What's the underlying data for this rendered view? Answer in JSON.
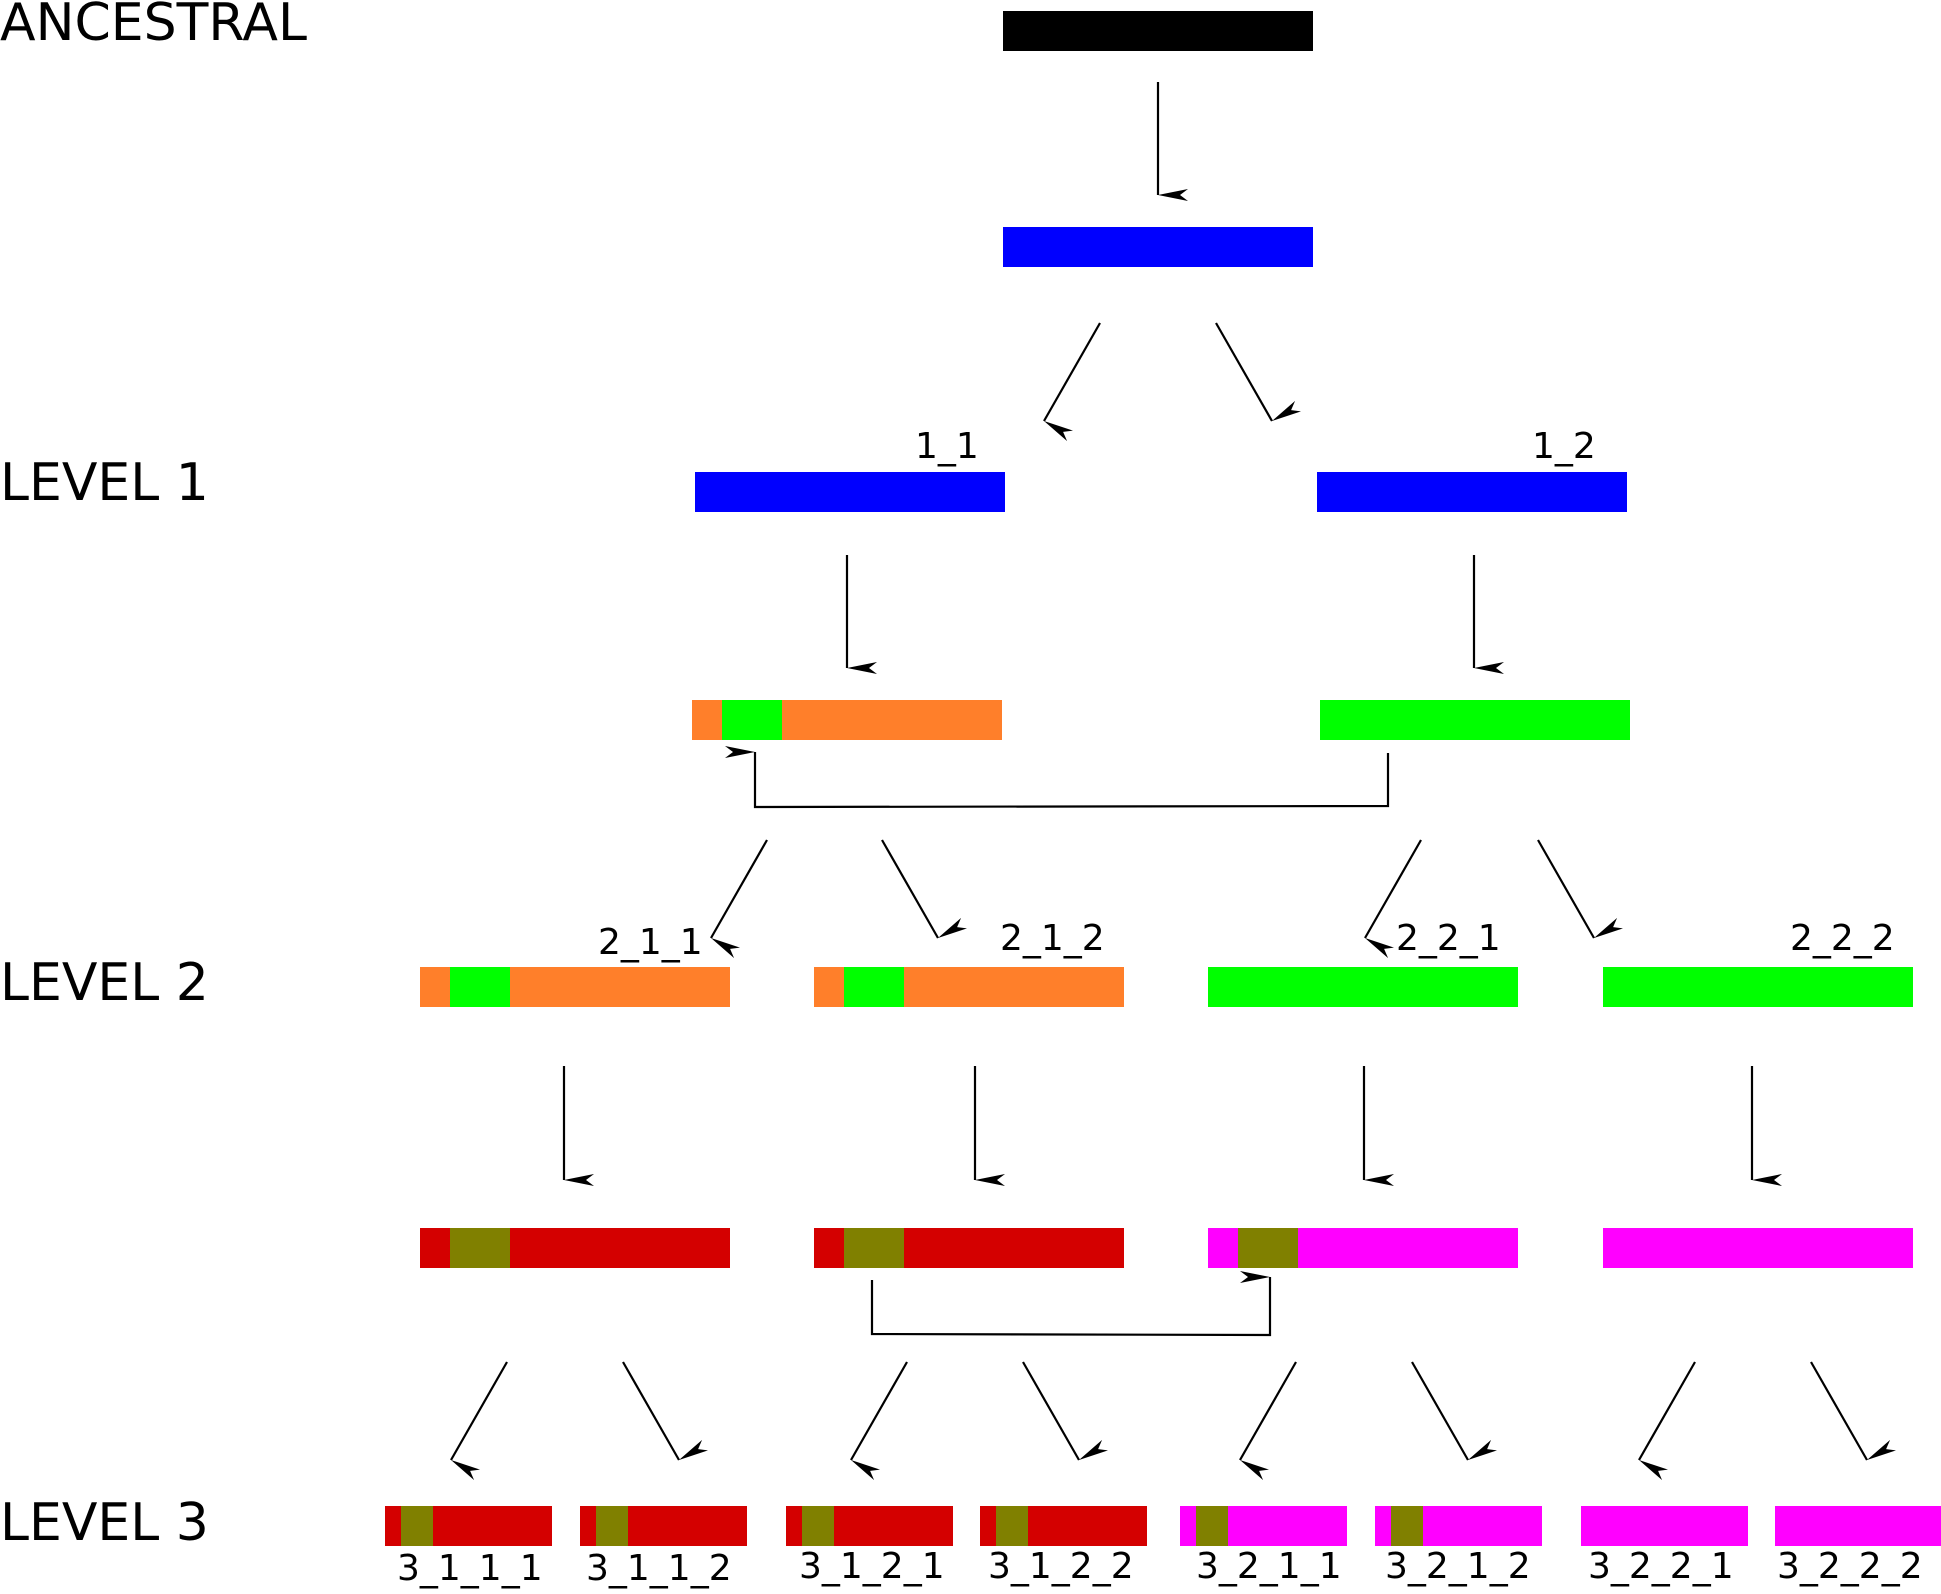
{
  "level_labels": {
    "ancestral": "ANCESTRAL",
    "level1": "LEVEL 1",
    "level2": "LEVEL 2",
    "level3": "LEVEL 3"
  },
  "node_labels": {
    "n1_1": "1_1",
    "n1_2": "1_2",
    "n2_1_1": "2_1_1",
    "n2_1_2": "2_1_2",
    "n2_2_1": "2_2_1",
    "n2_2_2": "2_2_2",
    "n3_1_1_1": "3_1_1_1",
    "n3_1_1_2": "3_1_1_2",
    "n3_1_2_1": "3_1_2_1",
    "n3_1_2_2": "3_1_2_2",
    "n3_2_1_1": "3_2_1_1",
    "n3_2_1_2": "3_2_1_2",
    "n3_2_2_1": "3_2_2_1",
    "n3_2_2_2": "3_2_2_2"
  },
  "colors": {
    "ancestral": "#000000",
    "blue": "#0000ff",
    "orange": "#ff7f2a",
    "green": "#00ff00",
    "red": "#d40000",
    "olive": "#808000",
    "magenta": "#ff00ff",
    "arrow": "#000000"
  }
}
